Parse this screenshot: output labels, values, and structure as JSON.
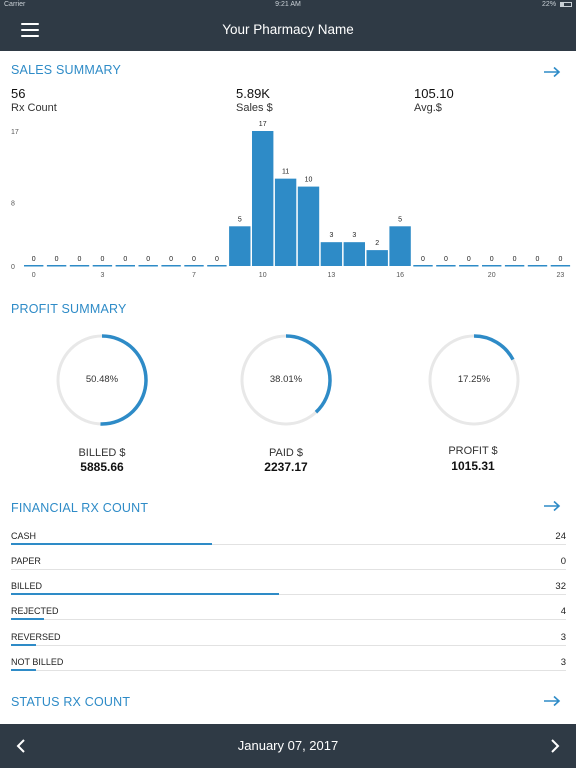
{
  "status_bar": {
    "carrier": "Carrier",
    "time": "9:21 AM",
    "battery": "22%"
  },
  "nav": {
    "title": "Your Pharmacy Name"
  },
  "sales_summary": {
    "title": "SALES SUMMARY",
    "stats": [
      {
        "value": "56",
        "label": "Rx Count"
      },
      {
        "value": "5.89K",
        "label": "Sales $"
      },
      {
        "value": "105.10",
        "label": "Avg.$"
      }
    ]
  },
  "chart_data": {
    "type": "bar",
    "categories": [
      "0",
      "1",
      "2",
      "3",
      "4",
      "5",
      "6",
      "7",
      "8",
      "9",
      "10",
      "11",
      "12",
      "13",
      "14",
      "15",
      "16",
      "17",
      "18",
      "19",
      "20",
      "21",
      "22",
      "23"
    ],
    "values": [
      0,
      0,
      0,
      0,
      0,
      0,
      0,
      0,
      0,
      5,
      17,
      11,
      10,
      3,
      3,
      2,
      5,
      0,
      0,
      0,
      0,
      0,
      0,
      0
    ],
    "x_ticks": [
      "0",
      "3",
      "7",
      "10",
      "13",
      "16",
      "20",
      "23"
    ],
    "y_ticks": [
      "0",
      "8",
      "17"
    ],
    "ylim": [
      0,
      17
    ],
    "bar_color": "#2e8bc7"
  },
  "profit_summary": {
    "title": "PROFIT SUMMARY",
    "gauges": [
      {
        "percent_text": "50.48%",
        "fraction": 0.5048,
        "label": "BILLED $",
        "value": "5885.66"
      },
      {
        "percent_text": "38.01%",
        "fraction": 0.3801,
        "label": "PAID $",
        "value": "2237.17"
      },
      {
        "percent_text": "17.25%",
        "fraction": 0.1725,
        "label": "PROFIT $",
        "value": "1015.31"
      }
    ]
  },
  "financial_rx": {
    "title": "FINANCIAL RX COUNT",
    "max": 32,
    "rows": [
      {
        "name": "CASH",
        "count": "24",
        "value": 24
      },
      {
        "name": "PAPER",
        "count": "0",
        "value": 0
      },
      {
        "name": "BILLED",
        "count": "32",
        "value": 32
      },
      {
        "name": "REJECTED",
        "count": "4",
        "value": 4
      },
      {
        "name": "REVERSED",
        "count": "3",
        "value": 3
      },
      {
        "name": "NOT BILLED",
        "count": "3",
        "value": 3
      }
    ]
  },
  "status_rx": {
    "title": "STATUS RX COUNT"
  },
  "footer": {
    "date": "January 07, 2017"
  },
  "colors": {
    "accent": "#2e8bc7",
    "navbar": "#2f3a45",
    "track": "#e8e8e8"
  },
  "icons": {
    "menu": "hamburger-icon",
    "arrow": "arrow-right-icon",
    "prev": "chevron-left-icon",
    "next": "chevron-right-icon"
  }
}
